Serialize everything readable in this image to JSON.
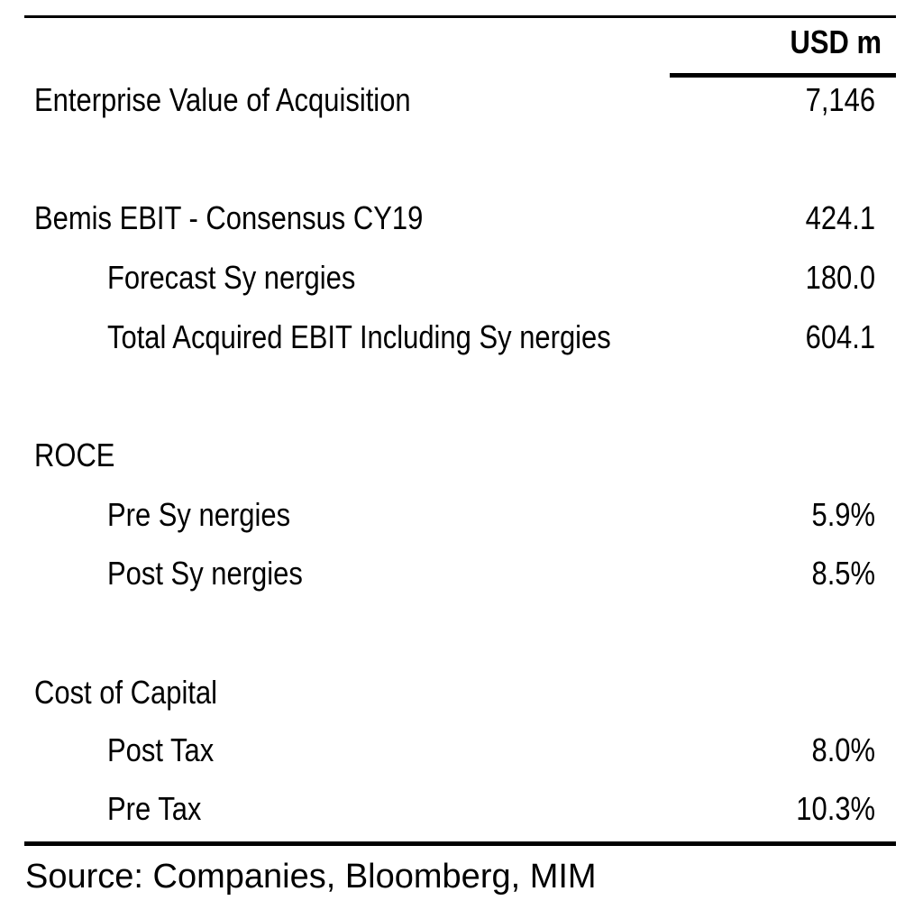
{
  "header": {
    "unit": "USD m"
  },
  "rows": [
    {
      "label": "Enterprise Value of Acquisition",
      "value": "7,146"
    },
    {
      "label": "Bemis EBIT - Consensus CY19",
      "value": "424.1"
    },
    {
      "label": "Forecast Sy nergies",
      "value": "180.0"
    },
    {
      "label": "Total Acquired EBIT Including Sy nergies",
      "value": "604.1"
    },
    {
      "label": "ROCE",
      "value": ""
    },
    {
      "label": "Pre Sy nergies",
      "value": "5.9%"
    },
    {
      "label": "Post Sy nergies",
      "value": "8.5%"
    },
    {
      "label": "Cost of Capital",
      "value": ""
    },
    {
      "label": "Post Tax",
      "value": "8.0%"
    },
    {
      "label": "Pre Tax",
      "value": "10.3%"
    }
  ],
  "source": "Source: Companies, Bloomberg, MIM"
}
